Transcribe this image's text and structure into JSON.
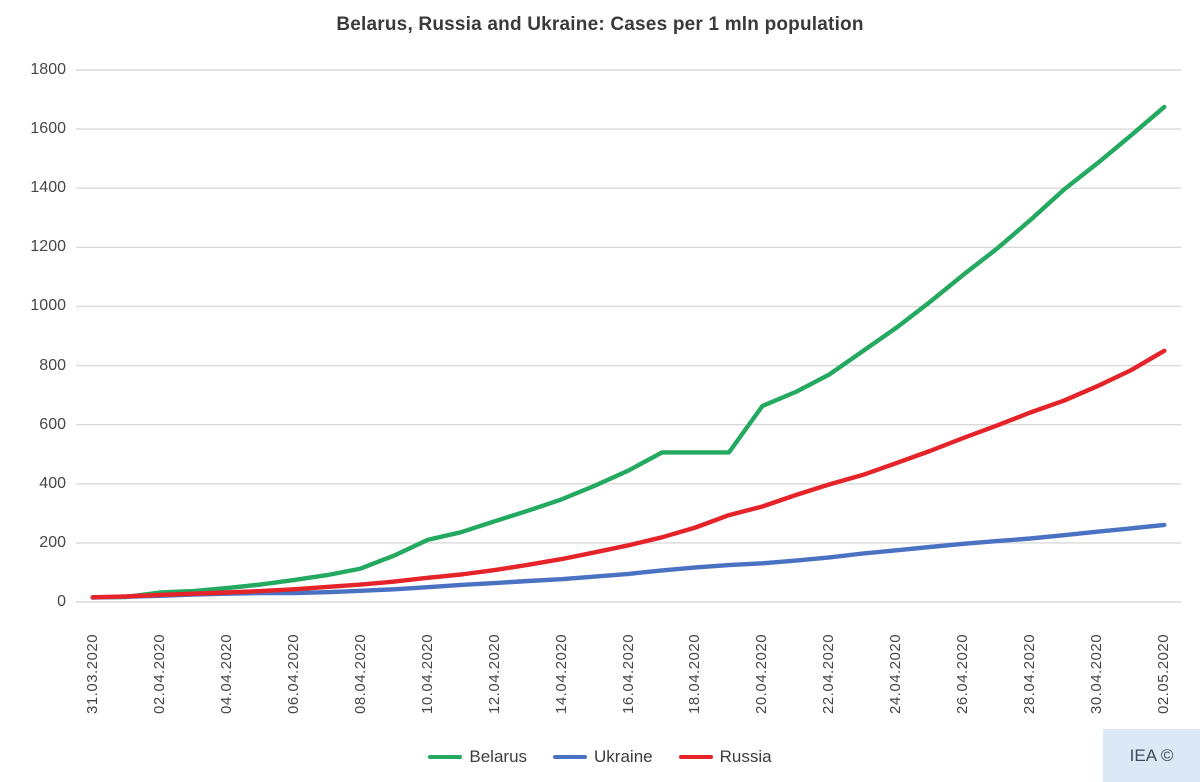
{
  "chart_data": {
    "type": "line",
    "title": "Belarus, Russia and Ukraine: Cases per 1 mln population",
    "xlabel": "",
    "ylabel": "",
    "ylim": [
      0,
      1800
    ],
    "yticks": [
      0,
      200,
      400,
      600,
      800,
      1000,
      1200,
      1400,
      1600,
      1800
    ],
    "grid": true,
    "grid_color": "#d9d9d9",
    "legend_position": "bottom",
    "xtick_every": 2,
    "x": [
      "31.03.2020",
      "01.04.2020",
      "02.04.2020",
      "03.04.2020",
      "04.04.2020",
      "05.04.2020",
      "06.04.2020",
      "07.04.2020",
      "08.04.2020",
      "09.04.2020",
      "10.04.2020",
      "11.04.2020",
      "12.04.2020",
      "13.04.2020",
      "14.04.2020",
      "15.04.2020",
      "16.04.2020",
      "17.04.2020",
      "18.04.2020",
      "19.04.2020",
      "20.04.2020",
      "21.04.2020",
      "22.04.2020",
      "23.04.2020",
      "24.04.2020",
      "25.04.2020",
      "26.04.2020",
      "27.04.2020",
      "28.04.2020",
      "29.04.2020",
      "30.04.2020",
      "01.05.2020",
      "02.05.2020"
    ],
    "xtick_labels": [
      "31.03.2020",
      "02.04.2020",
      "04.04.2020",
      "06.04.2020",
      "08.04.2020",
      "10.04.2020",
      "12.04.2020",
      "14.04.2020",
      "16.04.2020",
      "18.04.2020",
      "20.04.2020",
      "22.04.2020",
      "24.04.2020",
      "26.04.2020",
      "28.04.2020",
      "30.04.2020",
      "02.05.2020"
    ],
    "series": [
      {
        "name": "Belarus",
        "color": "#23a960",
        "values": [
          16,
          17,
          32,
          37,
          47,
          59,
          74,
          91,
          113,
          157,
          210,
          236,
          273,
          309,
          347,
          394,
          445,
          506,
          506,
          506,
          663,
          711,
          770,
          849,
          928,
          1015,
          1107,
          1195,
          1292,
          1395,
          1484,
          1578,
          1675
        ]
      },
      {
        "name": "Ukraine",
        "color": "#4a72c2",
        "values": [
          15,
          18,
          21,
          25,
          28,
          30,
          30,
          33,
          38,
          43,
          50,
          58,
          64,
          71,
          77,
          86,
          95,
          107,
          117,
          125,
          131,
          140,
          151,
          164,
          175,
          186,
          197,
          206,
          215,
          226,
          238,
          249,
          261
        ]
      },
      {
        "name": "Russia",
        "color": "#e62328",
        "values": [
          16,
          19,
          24,
          28,
          32,
          37,
          43,
          51,
          59,
          69,
          82,
          93,
          108,
          126,
          145,
          168,
          192,
          219,
          252,
          294,
          323,
          362,
          398,
          430,
          470,
          511,
          555,
          597,
          641,
          681,
          730,
          784,
          850
        ]
      }
    ]
  },
  "watermark": {
    "text": "IEA ©",
    "background": "#dbe8f6"
  },
  "colors": {
    "text": "#464646",
    "title": "#3a3a3a"
  }
}
